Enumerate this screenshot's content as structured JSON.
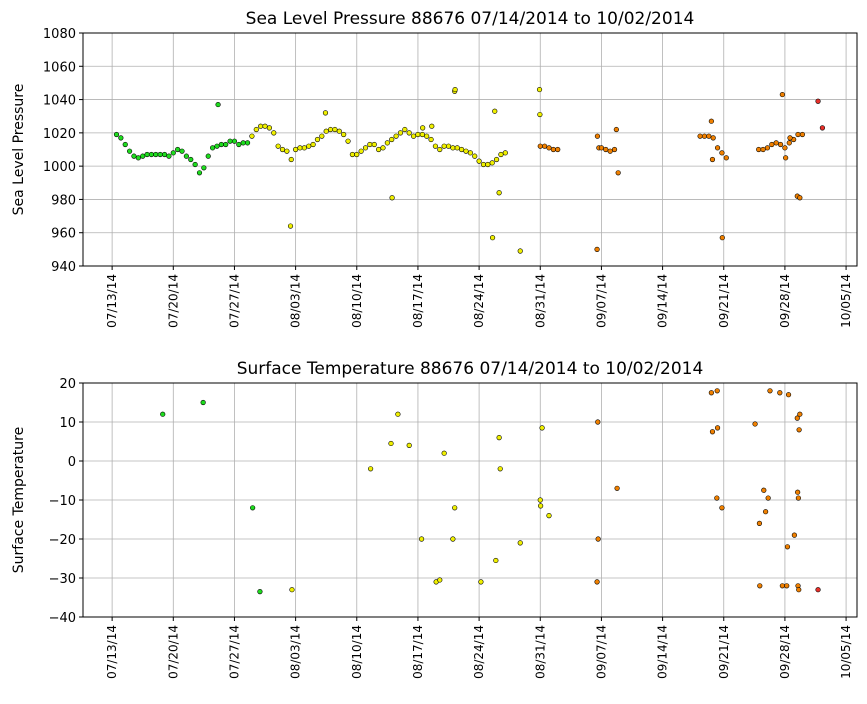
{
  "chart_data": [
    {
      "type": "scatter",
      "title": "Sea Level Pressure 88676  07/14/2014 to 10/02/2014",
      "ylabel": "Sea Level Pressure",
      "grid": true,
      "xlim": [
        "2014-07-09T16:00",
        "2014-10-06T06:00"
      ],
      "ylim": [
        940,
        1080
      ],
      "yticks": [
        940,
        960,
        980,
        1000,
        1020,
        1040,
        1060,
        1080
      ],
      "xticks": [
        {
          "value": "2014-07-13",
          "label": "07/13/14"
        },
        {
          "value": "2014-07-20",
          "label": "07/20/14"
        },
        {
          "value": "2014-07-27",
          "label": "07/27/14"
        },
        {
          "value": "2014-08-03",
          "label": "08/03/14"
        },
        {
          "value": "2014-08-10",
          "label": "08/10/14"
        },
        {
          "value": "2014-08-17",
          "label": "08/17/14"
        },
        {
          "value": "2014-08-24",
          "label": "08/24/14"
        },
        {
          "value": "2014-08-31",
          "label": "08/31/14"
        },
        {
          "value": "2014-09-07",
          "label": "09/07/14"
        },
        {
          "value": "2014-09-14",
          "label": "09/14/14"
        },
        {
          "value": "2014-09-21",
          "label": "09/21/14"
        },
        {
          "value": "2014-09-28",
          "label": "09/28/14"
        },
        {
          "value": "2014-10-05",
          "label": "10/05/14"
        }
      ],
      "series": [
        {
          "color": "#1edc1e",
          "x": [
            "2014-07-13T12:00",
            "2014-07-14T00:00",
            "2014-07-14T12:00",
            "2014-07-15T00:00",
            "2014-07-15T12:00",
            "2014-07-16T00:00",
            "2014-07-16T12:00",
            "2014-07-17T00:00",
            "2014-07-17T12:00",
            "2014-07-18T00:00",
            "2014-07-18T12:00",
            "2014-07-19T00:00",
            "2014-07-19T12:00",
            "2014-07-20T00:00",
            "2014-07-20T12:00",
            "2014-07-21T00:00",
            "2014-07-21T12:00",
            "2014-07-22T00:00",
            "2014-07-22T12:00",
            "2014-07-23T00:00",
            "2014-07-23T12:00",
            "2014-07-24T00:00",
            "2014-07-24T12:00",
            "2014-07-25T00:00",
            "2014-07-25T12:00",
            "2014-07-26T00:00",
            "2014-07-26T12:00",
            "2014-07-27T00:00",
            "2014-07-27T12:00",
            "2014-07-28T00:00",
            "2014-07-28T12:00",
            "2014-07-25T03:00"
          ],
          "values": [
            1019,
            1017,
            1013,
            1009,
            1006,
            1005,
            1006,
            1007,
            1007,
            1007,
            1007,
            1007,
            1006,
            1008,
            1010,
            1009,
            1006,
            1004,
            1001,
            996,
            999,
            1006,
            1011,
            1012,
            1013,
            1013,
            1015,
            1015,
            1013,
            1014,
            1014,
            1037
          ]
        },
        {
          "color": "#f0f000",
          "x": [
            "2014-07-29T00:00",
            "2014-07-29T12:00",
            "2014-07-30T00:00",
            "2014-07-30T12:00",
            "2014-07-31T00:00",
            "2014-07-31T12:00",
            "2014-08-01T00:00",
            "2014-08-01T12:00",
            "2014-08-02T00:00",
            "2014-08-02T12:00",
            "2014-08-03T00:00",
            "2014-08-03T12:00",
            "2014-08-04T00:00",
            "2014-08-04T12:00",
            "2014-08-05T00:00",
            "2014-08-05T12:00",
            "2014-08-06T00:00",
            "2014-08-06T12:00",
            "2014-08-07T00:00",
            "2014-08-07T12:00",
            "2014-08-08T00:00",
            "2014-08-08T12:00",
            "2014-08-09T00:00",
            "2014-08-09T12:00",
            "2014-08-10T00:00",
            "2014-08-10T12:00",
            "2014-08-11T00:00",
            "2014-08-11T12:00",
            "2014-08-12T00:00",
            "2014-08-12T12:00",
            "2014-08-13T00:00",
            "2014-08-13T12:00",
            "2014-08-14T00:00",
            "2014-08-14T12:00",
            "2014-08-15T00:00",
            "2014-08-15T12:00",
            "2014-08-16T00:00",
            "2014-08-16T12:00",
            "2014-08-17T00:00",
            "2014-08-17T12:00",
            "2014-08-18T00:00",
            "2014-08-18T12:00",
            "2014-08-19T00:00",
            "2014-08-19T12:00",
            "2014-08-20T00:00",
            "2014-08-20T12:00",
            "2014-08-21T00:00",
            "2014-08-21T12:00",
            "2014-08-22T00:00",
            "2014-08-22T12:00",
            "2014-08-23T00:00",
            "2014-08-23T12:00",
            "2014-08-24T00:00",
            "2014-08-24T12:00",
            "2014-08-25T00:00",
            "2014-08-25T12:00",
            "2014-08-26T00:00",
            "2014-08-26T12:00",
            "2014-08-27T00:00",
            "2014-08-02T10:00",
            "2014-08-06T10:00",
            "2014-08-14T01:00",
            "2014-08-17T13:00",
            "2014-08-18T14:00",
            "2014-08-21T05:00",
            "2014-08-21T06:00",
            "2014-08-25T13:00",
            "2014-08-25T19:00",
            "2014-08-26T07:00",
            "2014-08-28T17:00",
            "2014-08-30T22:00",
            "2014-08-30T23:00"
          ],
          "values": [
            1018,
            1022,
            1024,
            1024,
            1023,
            1020,
            1012,
            1010,
            1009,
            1004,
            1010,
            1011,
            1011,
            1012,
            1013,
            1016,
            1018,
            1021,
            1022,
            1022,
            1021,
            1019,
            1015,
            1007,
            1007,
            1009,
            1011,
            1013,
            1013,
            1010,
            1011,
            1014,
            1016,
            1018,
            1020,
            1022,
            1020,
            1018,
            1019,
            1019,
            1018,
            1016,
            1012,
            1010,
            1012,
            1012,
            1011,
            1011,
            1010,
            1009,
            1008,
            1006,
            1003,
            1001,
            1001,
            1002,
            1004,
            1007,
            1008,
            964,
            1032,
            981,
            1023,
            1024,
            1045,
            1046,
            957,
            1033,
            984,
            949,
            1046,
            1031
          ]
        },
        {
          "color": "#f08000",
          "x": [
            "2014-08-31T00:00",
            "2014-08-31T12:00",
            "2014-09-01T00:00",
            "2014-09-01T12:00",
            "2014-09-02T00:00",
            "2014-09-06T12:00",
            "2014-09-06T13:00",
            "2014-09-06T17:00",
            "2014-09-07T00:00",
            "2014-09-07T12:00",
            "2014-09-08T00:00",
            "2014-09-08T12:00",
            "2014-09-08T17:00",
            "2014-09-08T22:00",
            "2014-09-18T07:00",
            "2014-09-18T19:00",
            "2014-09-19T07:00",
            "2014-09-19T19:00",
            "2014-09-20T07:00",
            "2014-09-20T19:00",
            "2014-09-21T07:00",
            "2014-09-19T14:00",
            "2014-09-19T17:00",
            "2014-09-20T20:00",
            "2014-09-25T00:00",
            "2014-09-25T12:00",
            "2014-09-26T00:00",
            "2014-09-26T12:00",
            "2014-09-27T00:00",
            "2014-09-27T12:00",
            "2014-09-28T00:00",
            "2014-09-28T12:00",
            "2014-09-29T00:00",
            "2014-09-29T12:00",
            "2014-09-30T00:00",
            "2014-09-27T17:00",
            "2014-09-28T02:00",
            "2014-09-28T14:00",
            "2014-09-29T10:00",
            "2014-09-29T17:00"
          ],
          "values": [
            1012,
            1012,
            1011,
            1010,
            1010,
            950,
            1018,
            1011,
            1011,
            1010,
            1009,
            1010,
            1022,
            996,
            1018,
            1018,
            1018,
            1017,
            1011,
            1008,
            1005,
            1027,
            1004,
            957,
            1010,
            1010,
            1011,
            1013,
            1014,
            1013,
            1011,
            1014,
            1016,
            1019,
            1019,
            1043,
            1005,
            1017,
            982,
            981
          ]
        },
        {
          "color": "#e8302a",
          "x": [
            "2014-10-01T19:00",
            "2014-10-02T07:00"
          ],
          "values": [
            1039,
            1023
          ]
        }
      ]
    },
    {
      "type": "scatter",
      "title": "Surface Temperature 88676  07/14/2014 to 10/02/2014",
      "ylabel": "Surface Temperature",
      "grid": true,
      "xlim": [
        "2014-07-09T16:00",
        "2014-10-06T06:00"
      ],
      "ylim": [
        -40,
        20
      ],
      "yticks": [
        {
          "value": -40,
          "label": "−40"
        },
        {
          "value": -30,
          "label": "−30"
        },
        {
          "value": -20,
          "label": "−20"
        },
        {
          "value": -10,
          "label": "−10"
        },
        0,
        10,
        20
      ],
      "xticks": [
        {
          "value": "2014-07-13",
          "label": "07/13/14"
        },
        {
          "value": "2014-07-20",
          "label": "07/20/14"
        },
        {
          "value": "2014-07-27",
          "label": "07/27/14"
        },
        {
          "value": "2014-08-03",
          "label": "08/03/14"
        },
        {
          "value": "2014-08-10",
          "label": "08/10/14"
        },
        {
          "value": "2014-08-17",
          "label": "08/17/14"
        },
        {
          "value": "2014-08-24",
          "label": "08/24/14"
        },
        {
          "value": "2014-08-31",
          "label": "08/31/14"
        },
        {
          "value": "2014-09-07",
          "label": "09/07/14"
        },
        {
          "value": "2014-09-14",
          "label": "09/14/14"
        },
        {
          "value": "2014-09-21",
          "label": "09/21/14"
        },
        {
          "value": "2014-09-28",
          "label": "09/28/14"
        },
        {
          "value": "2014-10-05",
          "label": "10/05/14"
        }
      ],
      "series": [
        {
          "color": "#1edc1e",
          "x": [
            "2014-07-18T19:00",
            "2014-07-23T10:00",
            "2014-07-29T02:00",
            "2014-07-29T22:00"
          ],
          "values": [
            12,
            15,
            -12,
            -33.5
          ]
        },
        {
          "color": "#f0f000",
          "x": [
            "2014-08-02T14:00",
            "2014-08-11T14:00",
            "2014-08-13T22:00",
            "2014-08-14T17:00",
            "2014-08-16T00:00",
            "2014-08-17T10:00",
            "2014-08-19T02:00",
            "2014-08-19T12:00",
            "2014-08-20T00:00",
            "2014-08-21T00:00",
            "2014-08-21T05:00",
            "2014-08-24T05:00",
            "2014-08-25T22:00",
            "2014-08-26T07:00",
            "2014-08-26T10:00",
            "2014-08-28T17:00",
            "2014-08-31T00:00",
            "2014-08-31T01:00",
            "2014-08-31T05:00",
            "2014-09-01T00:00"
          ],
          "values": [
            -33,
            -2,
            4.5,
            12,
            4,
            -20,
            -31,
            -30.5,
            2,
            -20,
            -12,
            -31,
            -25.5,
            6,
            -2,
            -21,
            -10,
            -11.5,
            8.5,
            -14
          ]
        },
        {
          "color": "#f08000",
          "x": [
            "2014-09-06T12:00",
            "2014-09-06T14:00",
            "2014-09-06T15:00",
            "2014-09-08T19:00",
            "2014-09-19T14:00",
            "2014-09-19T17:00",
            "2014-09-20T05:00",
            "2014-09-20T06:00",
            "2014-09-20T07:00",
            "2014-09-20T19:00",
            "2014-09-24T14:00",
            "2014-09-25T02:00",
            "2014-09-25T03:00",
            "2014-09-25T14:00",
            "2014-09-25T19:00",
            "2014-09-26T02:00",
            "2014-09-26T07:00",
            "2014-09-27T10:00",
            "2014-09-27T17:00",
            "2014-09-28T05:00",
            "2014-09-28T07:00",
            "2014-09-28T10:00",
            "2014-09-29T02:00",
            "2014-09-29T10:00",
            "2014-09-29T11:00",
            "2014-09-29T12:00",
            "2014-09-29T13:00",
            "2014-09-29T14:00",
            "2014-09-29T17:00",
            "2014-09-29T15:00"
          ],
          "values": [
            -31,
            10,
            -20,
            -7,
            17.5,
            7.5,
            -9.5,
            18,
            8.5,
            -12,
            9.5,
            -16,
            -32,
            -7.5,
            -13,
            -9.5,
            18,
            17.5,
            -32,
            -32,
            -22,
            17,
            -19,
            11,
            -8,
            -32,
            -9.5,
            -33,
            12,
            8
          ]
        },
        {
          "color": "#e8302a",
          "x": [
            "2014-10-01T19:00"
          ],
          "values": [
            -33
          ]
        }
      ]
    }
  ]
}
